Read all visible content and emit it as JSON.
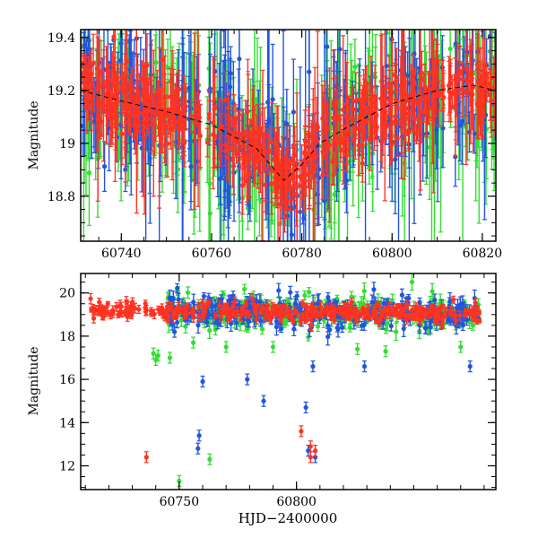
{
  "chart_data": [
    {
      "type": "scatter",
      "title": "",
      "xlabel": "",
      "ylabel": "Magnitude",
      "xlim": [
        60731,
        60823
      ],
      "ylim": [
        19.43,
        18.63
      ],
      "y_inverted": true,
      "x_ticks": [
        60740,
        60760,
        60780,
        60800,
        60820
      ],
      "y_ticks": [
        18.8,
        19,
        19.2,
        19.4
      ],
      "x_tick_labels": [
        "60740",
        "60760",
        "60780",
        "60800",
        "60820"
      ],
      "y_tick_labels": [
        "18.8",
        "19",
        "19.2",
        "19.4"
      ],
      "grid": false,
      "legend": "none",
      "model_curve": {
        "style": "dashed",
        "color": "#000000",
        "x": [
          60731,
          60740,
          60750,
          60760,
          60770,
          60776,
          60780,
          60784,
          60790,
          60800,
          60810,
          60818,
          60823
        ],
        "y": [
          19.2,
          19.16,
          19.12,
          19.07,
          18.98,
          18.86,
          18.92,
          19.0,
          19.06,
          19.15,
          19.2,
          19.22,
          19.2
        ]
      },
      "series": [
        {
          "color": "#2255dd",
          "band": "blue",
          "x_range": [
            60731,
            60823
          ],
          "typical_error": 0.12
        },
        {
          "color": "#33dd33",
          "band": "green",
          "x_range": [
            60731,
            60823
          ],
          "typical_error": 0.15
        },
        {
          "color": "#ff3322",
          "band": "red",
          "x_range": [
            60731,
            60823
          ],
          "typical_error": 0.07
        }
      ]
    },
    {
      "type": "scatter",
      "title": "",
      "xlabel": "HJD−2400000",
      "ylabel": "Magnitude",
      "xlim": [
        60708,
        60885
      ],
      "ylim": [
        20.9,
        10.9
      ],
      "y_inverted": true,
      "x_ticks": [
        60750,
        60800
      ],
      "y_ticks": [
        12,
        14,
        16,
        18,
        20
      ],
      "x_tick_labels": [
        "60750",
        "60800"
      ],
      "y_tick_labels": [
        "12",
        "14",
        "16",
        "18",
        "20"
      ],
      "grid": false,
      "legend": "none",
      "series": [
        {
          "color": "#2255dd",
          "band": "blue",
          "x_range": [
            60745,
            60878
          ],
          "outliers": [
            [
              60758,
              12.8
            ],
            [
              60758.5,
              13.4
            ],
            [
              60760,
              15.9
            ],
            [
              60779,
              16.0
            ],
            [
              60786,
              15.0
            ],
            [
              60805,
              12.7
            ],
            [
              60808,
              12.4
            ],
            [
              60804,
              14.7
            ],
            [
              60807,
              16.6
            ],
            [
              60829,
              16.6
            ],
            [
              60874,
              16.6
            ],
            [
              60748,
              18.2
            ]
          ]
        },
        {
          "color": "#33dd33",
          "band": "green",
          "x_range": [
            60745,
            60878
          ],
          "outliers": [
            [
              60750,
              11.3
            ],
            [
              60763,
              12.3
            ],
            [
              60739,
              17.2
            ],
            [
              60741,
              17.1
            ],
            [
              60740,
              16.9
            ],
            [
              60746,
              17.0
            ],
            [
              60756,
              17.7
            ],
            [
              60770,
              17.5
            ],
            [
              60790,
              17.5
            ],
            [
              60826,
              17.4
            ],
            [
              60838,
              17.3
            ],
            [
              60870,
              17.5
            ]
          ]
        },
        {
          "color": "#ff3322",
          "band": "red",
          "x_range": [
            60712,
            60878
          ],
          "outliers": [
            [
              60736,
              12.4
            ],
            [
              60802,
              13.6
            ],
            [
              60806,
              12.9
            ],
            [
              60808,
              12.7
            ],
            [
              60806,
              12.4
            ]
          ]
        }
      ]
    }
  ]
}
